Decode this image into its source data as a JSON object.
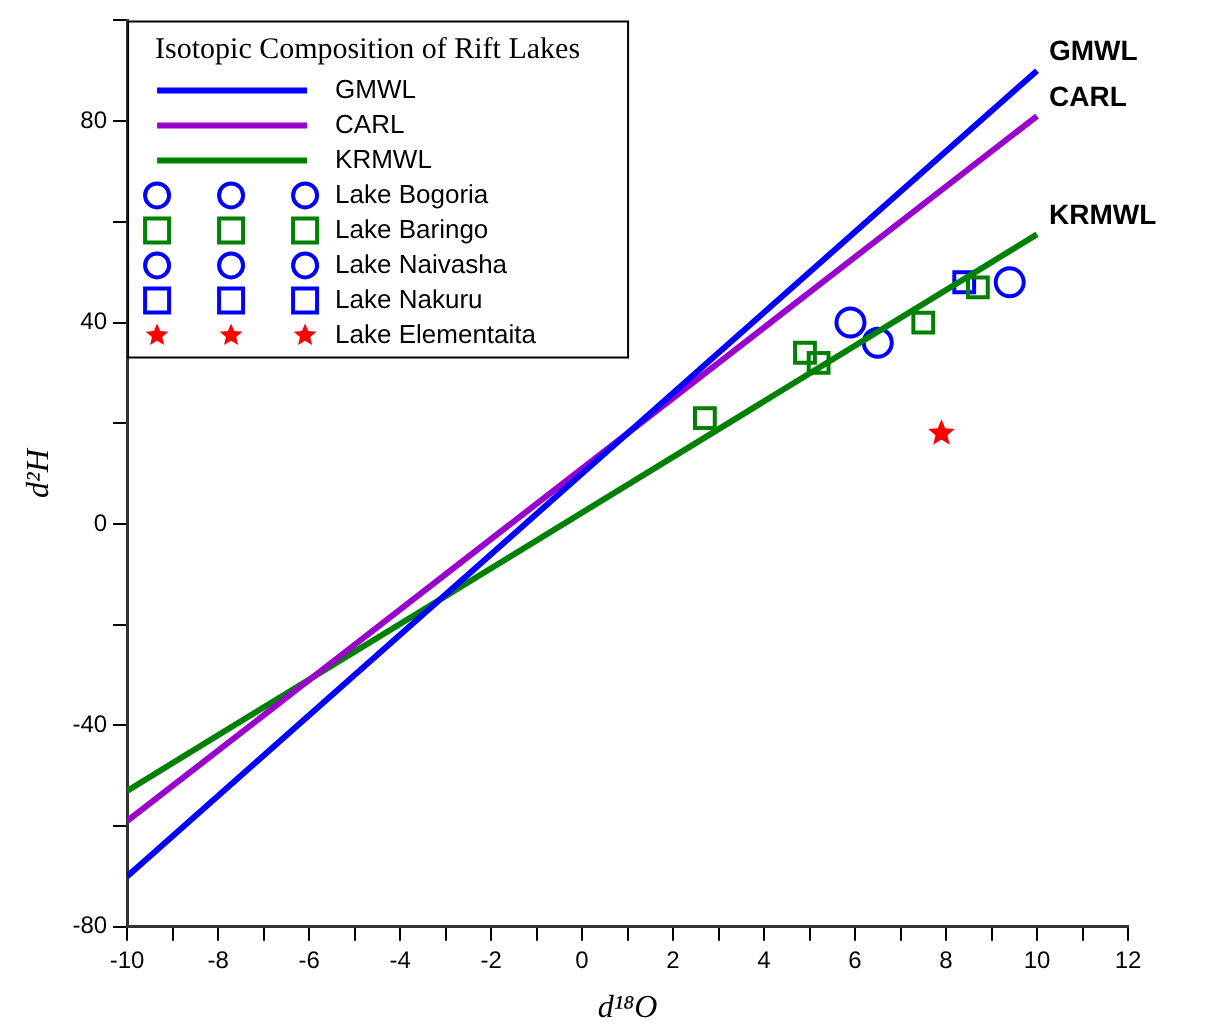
{
  "chart_data": {
    "type": "scatter",
    "xlabel": "d¹⁸O",
    "ylabel": "d²H",
    "legend_title": "Isotopic Composition of Rift Lakes",
    "legend": "top left",
    "grid": false,
    "xlim": [
      -10,
      12
    ],
    "ylim": [
      -80,
      100
    ],
    "xticks": [
      -10,
      {
        "value": -9,
        "label": null
      },
      -8,
      {
        "value": -7,
        "label": null
      },
      -6,
      {
        "value": -5,
        "label": null
      },
      -4,
      {
        "value": -3,
        "label": null
      },
      -2,
      {
        "value": -1,
        "label": null
      },
      0,
      {
        "value": 1,
        "label": null
      },
      2,
      {
        "value": 3,
        "label": null
      },
      4,
      {
        "value": 5,
        "label": null
      },
      6,
      {
        "value": 7,
        "label": null
      },
      8,
      {
        "value": 9,
        "label": null
      },
      10,
      {
        "value": 11,
        "label": null
      },
      12
    ],
    "yticks": [
      -80,
      {
        "value": -60,
        "label": null
      },
      -40,
      {
        "value": -20,
        "label": null
      },
      0,
      {
        "value": 20,
        "label": null
      },
      40,
      {
        "value": 60,
        "label": null
      },
      80,
      {
        "value": 100,
        "label": null
      }
    ],
    "series": [
      {
        "name": "GMWL",
        "type": "line",
        "color": "#0000ff",
        "marker": "none",
        "x": [
          -10,
          10
        ],
        "values": [
          -70,
          90
        ]
      },
      {
        "name": "CARL",
        "type": "line",
        "color": "#9900cc",
        "marker": "none",
        "x": [
          -10,
          10
        ],
        "values": [
          -59,
          81
        ]
      },
      {
        "name": "KRMWL",
        "type": "line",
        "color": "#008000",
        "marker": "none",
        "x": [
          -10,
          10
        ],
        "values": [
          -53,
          57.5
        ]
      },
      {
        "name": "Lake Bogoria",
        "type": "scatter",
        "color": "#0000ff",
        "marker": "circle",
        "x": [
          5.9,
          9.4
        ],
        "values": [
          40,
          48
        ]
      },
      {
        "name": "Lake Baringo",
        "type": "scatter",
        "color": "#008000",
        "marker": "square",
        "x": [
          2.7,
          4.9,
          5.2,
          7.5,
          8.7
        ],
        "values": [
          21,
          34,
          32,
          40,
          47
        ]
      },
      {
        "name": "Lake Naivasha",
        "type": "scatter",
        "color": "#0000ff",
        "marker": "circle",
        "x": [
          6.5
        ],
        "values": [
          36
        ]
      },
      {
        "name": "Lake Nakuru",
        "type": "scatter",
        "color": "#0000ff",
        "marker": "square",
        "x": [
          8.4
        ],
        "values": [
          48
        ]
      },
      {
        "name": "Lake Elementaita",
        "type": "scatter",
        "color": "#ff0000",
        "marker": "star",
        "x": [
          7.9
        ],
        "values": [
          18
        ]
      }
    ]
  }
}
